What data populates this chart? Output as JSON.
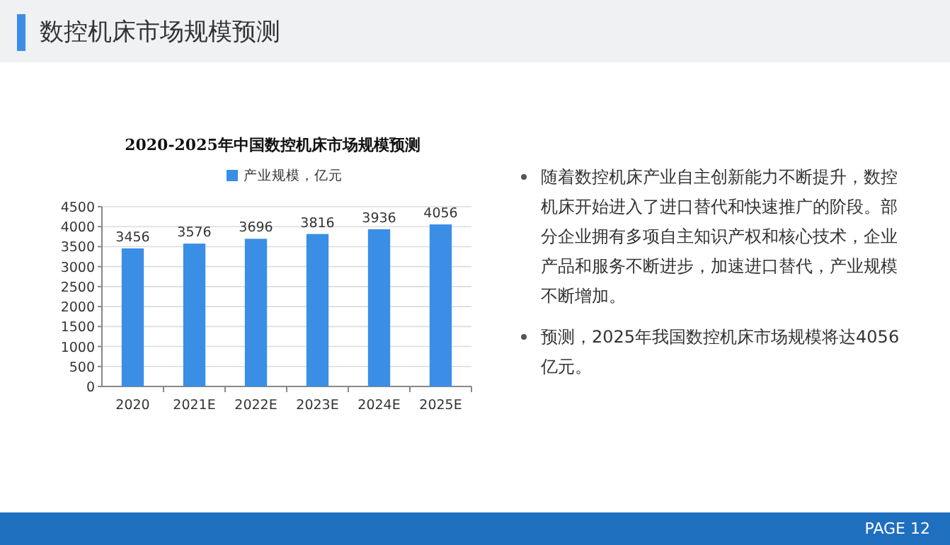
{
  "chart_data": {
    "type": "bar",
    "title": "2020-2025年中国数控机床市场规模预测",
    "categories": [
      "2020",
      "2021E",
      "2022E",
      "2023E",
      "2024E",
      "2025E"
    ],
    "series": [
      {
        "name": "产业规模，亿元",
        "color": "#3a8ee6",
        "values": [
          3456,
          3576,
          3696,
          3816,
          3936,
          4056
        ]
      }
    ],
    "ylim": [
      0,
      4500
    ],
    "yticks": [
      0,
      500,
      1000,
      1500,
      2000,
      2500,
      3000,
      3500,
      4000,
      4500
    ],
    "grid": "y",
    "legend": "top",
    "data_labels": true,
    "annotations": [
      "数控机床市场规模预测",
      "随着数控机床产业自主创新能力不断提升，数控机床开始进入了进口替代和快速推广的阶段。部分企业拥有多项自主知识产权和核心技术，企业产品和服务不断进步，加速进口替代，产业规模不断增加。",
      "预测，2025年我国数控机床市场规模将达4056亿元。",
      "PAGE 12"
    ]
  }
}
